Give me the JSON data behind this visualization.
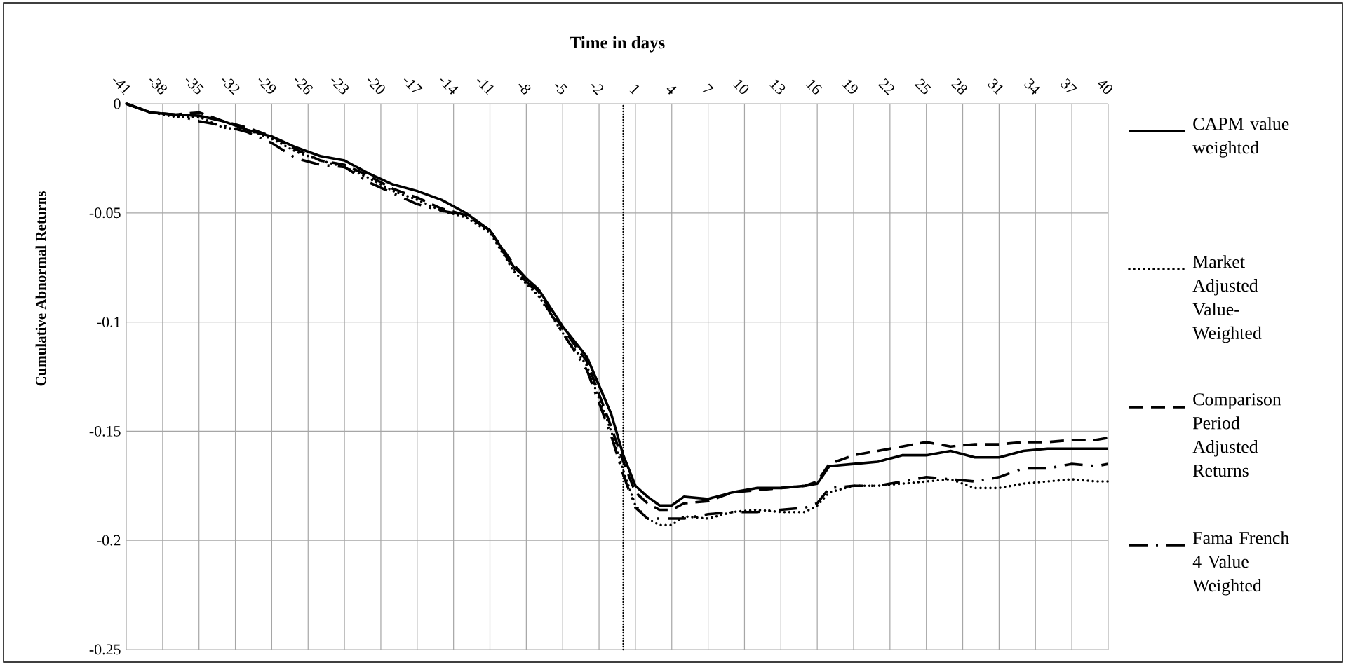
{
  "chart_data": {
    "type": "line",
    "xlabel": "Time in days",
    "ylabel": "Cumulative Abnormal Returns",
    "x": [
      -41,
      -39,
      -37,
      -35,
      -33,
      -31,
      -29,
      -27,
      -25,
      -23,
      -21,
      -19,
      -17,
      -15,
      -13,
      -11,
      -9,
      -7,
      -5,
      -3,
      -1,
      0,
      1,
      2,
      3,
      4,
      5,
      7,
      9,
      11,
      13,
      15,
      16,
      17,
      19,
      21,
      23,
      25,
      27,
      29,
      31,
      33,
      35,
      37,
      39,
      40
    ],
    "series": [
      {
        "name": "CAPM value weighted",
        "color": "#000000",
        "line_style": "solid",
        "values": [
          0,
          -0.004,
          -0.005,
          -0.0055,
          -0.008,
          -0.012,
          -0.015,
          -0.02,
          -0.024,
          -0.026,
          -0.032,
          -0.037,
          -0.04,
          -0.044,
          -0.05,
          -0.058,
          -0.075,
          -0.085,
          -0.102,
          -0.116,
          -0.142,
          -0.161,
          -0.175,
          -0.18,
          -0.184,
          -0.184,
          -0.18,
          -0.181,
          -0.178,
          -0.176,
          -0.176,
          -0.175,
          -0.174,
          -0.166,
          -0.165,
          -0.164,
          -0.161,
          -0.161,
          -0.159,
          -0.162,
          -0.162,
          -0.159,
          -0.158,
          -0.158,
          -0.158,
          -0.158
        ]
      },
      {
        "name": "Market Adjusted Value-Weighted",
        "color": "#000000",
        "line_style": "dotted",
        "values": [
          0,
          -0.004,
          -0.006,
          -0.006,
          -0.011,
          -0.012,
          -0.016,
          -0.022,
          -0.026,
          -0.029,
          -0.034,
          -0.04,
          -0.044,
          -0.049,
          -0.052,
          -0.059,
          -0.077,
          -0.088,
          -0.105,
          -0.12,
          -0.15,
          -0.168,
          -0.184,
          -0.19,
          -0.193,
          -0.193,
          -0.189,
          -0.19,
          -0.187,
          -0.186,
          -0.187,
          -0.187,
          -0.184,
          -0.178,
          -0.175,
          -0.175,
          -0.174,
          -0.173,
          -0.172,
          -0.176,
          -0.176,
          -0.174,
          -0.173,
          -0.172,
          -0.173,
          -0.173
        ]
      },
      {
        "name": "Comparison Period Adjusted Returns",
        "color": "#000000",
        "line_style": "dashed",
        "values": [
          0,
          -0.004,
          -0.005,
          -0.004,
          -0.008,
          -0.011,
          -0.015,
          -0.021,
          -0.026,
          -0.028,
          -0.033,
          -0.039,
          -0.043,
          -0.048,
          -0.051,
          -0.058,
          -0.074,
          -0.086,
          -0.103,
          -0.118,
          -0.148,
          -0.164,
          -0.178,
          -0.183,
          -0.186,
          -0.186,
          -0.183,
          -0.182,
          -0.178,
          -0.177,
          -0.176,
          -0.175,
          -0.173,
          -0.165,
          -0.161,
          -0.159,
          -0.157,
          -0.155,
          -0.157,
          -0.156,
          -0.156,
          -0.155,
          -0.155,
          -0.154,
          -0.154,
          -0.153
        ]
      },
      {
        "name": "Fama French 4 Value Weighted",
        "color": "#000000",
        "line_style": "dashdot",
        "values": [
          0,
          -0.004,
          -0.005,
          -0.008,
          -0.01,
          -0.013,
          -0.018,
          -0.025,
          -0.028,
          -0.029,
          -0.036,
          -0.041,
          -0.046,
          -0.049,
          -0.051,
          -0.058,
          -0.076,
          -0.087,
          -0.105,
          -0.122,
          -0.152,
          -0.17,
          -0.185,
          -0.19,
          -0.19,
          -0.19,
          -0.19,
          -0.188,
          -0.187,
          -0.187,
          -0.186,
          -0.185,
          -0.183,
          -0.176,
          -0.175,
          -0.175,
          -0.173,
          -0.171,
          -0.172,
          -0.173,
          -0.171,
          -0.167,
          -0.167,
          -0.165,
          -0.166,
          -0.165
        ]
      }
    ],
    "xlim": [
      -41,
      40
    ],
    "xticks": [
      -41,
      -38,
      -35,
      -32,
      -29,
      -26,
      -23,
      -20,
      -17,
      -14,
      -11,
      -8,
      -5,
      -2,
      1,
      4,
      7,
      10,
      13,
      16,
      19,
      22,
      25,
      28,
      31,
      34,
      37,
      40
    ],
    "ylim": [
      -0.25,
      0
    ],
    "yticks": [
      -0.25,
      -0.2,
      -0.15,
      -0.1,
      -0.05,
      0
    ],
    "ref_lines": [
      {
        "axis": "x",
        "value": 0,
        "color": "#000000",
        "line_style": "dotted"
      }
    ],
    "grid": true,
    "legend": "right"
  }
}
